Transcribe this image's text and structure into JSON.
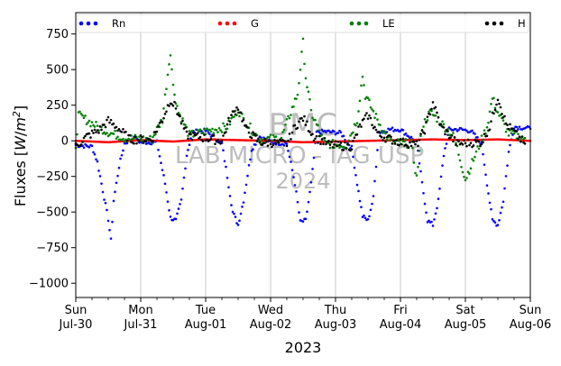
{
  "chart_data": {
    "type": "scatter",
    "xlabel": "2023",
    "ylabel": "Fluxes [W/m²]",
    "ylabel_parts": {
      "text": "Fluxes [",
      "unit_w": "W",
      "unit_slash": "/",
      "unit_m": "m",
      "unit_exp": "2",
      "close": "]"
    },
    "ylim": [
      -1100,
      900
    ],
    "yticks": [
      750,
      500,
      250,
      0,
      -250,
      -500,
      -750,
      -1000
    ],
    "ytick_labels": [
      "750",
      "500",
      "250",
      "0",
      "−250",
      "−500",
      "−750",
      "−1000"
    ],
    "xlim": [
      "2023-07-30",
      "2023-08-06"
    ],
    "xticks": [
      {
        "date": "2023-07-30",
        "day": "Sun",
        "date_label": "Jul-30"
      },
      {
        "date": "2023-07-31",
        "day": "Mon",
        "date_label": "Jul-31"
      },
      {
        "date": "2023-08-01",
        "day": "Tue",
        "date_label": "Aug-01"
      },
      {
        "date": "2023-08-02",
        "day": "Wed",
        "date_label": "Aug-02"
      },
      {
        "date": "2023-08-03",
        "day": "Thu",
        "date_label": "Aug-03"
      },
      {
        "date": "2023-08-04",
        "day": "Fri",
        "date_label": "Aug-04"
      },
      {
        "date": "2023-08-05",
        "day": "Sat",
        "date_label": "Aug-05"
      },
      {
        "date": "2023-08-06",
        "day": "Sun",
        "date_label": "Aug-06"
      }
    ],
    "grid": "vertical",
    "legend_position": "top",
    "series": [
      {
        "name": "Rn",
        "color": "#0000ff",
        "points": [
          [
            "2023-07-30 00:00",
            -30
          ],
          [
            "2023-07-30 03:00",
            -35
          ],
          [
            "2023-07-30 06:00",
            -40
          ],
          [
            "2023-07-30 08:00",
            -150
          ],
          [
            "2023-07-30 10:00",
            -350
          ],
          [
            "2023-07-30 12:00",
            -550
          ],
          [
            "2023-07-30 13:00",
            -700
          ],
          [
            "2023-07-30 14:00",
            -420
          ],
          [
            "2023-07-30 16:00",
            -180
          ],
          [
            "2023-07-30 18:00",
            -20
          ],
          [
            "2023-07-30 21:00",
            20
          ],
          [
            "2023-07-31 00:00",
            -10
          ],
          [
            "2023-07-31 06:00",
            -10
          ],
          [
            "2023-07-31 09:00",
            -300
          ],
          [
            "2023-07-31 11:00",
            -540
          ],
          [
            "2023-07-31 13:00",
            -560
          ],
          [
            "2023-07-31 15:00",
            -420
          ],
          [
            "2023-07-31 17:00",
            -100
          ],
          [
            "2023-07-31 19:00",
            60
          ],
          [
            "2023-07-31 22:00",
            70
          ],
          [
            "2023-08-01 00:00",
            70
          ],
          [
            "2023-08-01 06:00",
            -20
          ],
          [
            "2023-08-01 08:00",
            -250
          ],
          [
            "2023-08-01 10:00",
            -500
          ],
          [
            "2023-08-01 12:00",
            -590
          ],
          [
            "2023-08-01 14:00",
            -420
          ],
          [
            "2023-08-01 17:00",
            -60
          ],
          [
            "2023-08-01 20:00",
            30
          ],
          [
            "2023-08-02 00:00",
            -10
          ],
          [
            "2023-08-02 06:00",
            -20
          ],
          [
            "2023-08-02 09:00",
            -300
          ],
          [
            "2023-08-02 11:00",
            -570
          ],
          [
            "2023-08-02 13:00",
            -560
          ],
          [
            "2023-08-02 15:00",
            -300
          ],
          [
            "2023-08-02 17:00",
            60
          ],
          [
            "2023-08-02 20:00",
            65
          ],
          [
            "2023-08-02 23:00",
            60
          ],
          [
            "2023-08-03 02:00",
            55
          ],
          [
            "2023-08-03 06:00",
            -50
          ],
          [
            "2023-08-03 08:00",
            -300
          ],
          [
            "2023-08-03 10:00",
            -530
          ],
          [
            "2023-08-03 12:00",
            -560
          ],
          [
            "2023-08-03 14:00",
            -400
          ],
          [
            "2023-08-03 16:00",
            60
          ],
          [
            "2023-08-03 20:00",
            80
          ],
          [
            "2023-08-04 00:00",
            80
          ],
          [
            "2023-08-04 06:00",
            -10
          ],
          [
            "2023-08-04 08:00",
            -300
          ],
          [
            "2023-08-04 10:00",
            -560
          ],
          [
            "2023-08-04 12:00",
            -590
          ],
          [
            "2023-08-04 14:00",
            -420
          ],
          [
            "2023-08-04 16:00",
            -100
          ],
          [
            "2023-08-04 18:00",
            80
          ],
          [
            "2023-08-04 22:00",
            80
          ],
          [
            "2023-08-05 02:00",
            70
          ],
          [
            "2023-08-05 06:00",
            -20
          ],
          [
            "2023-08-05 08:00",
            -300
          ],
          [
            "2023-08-05 10:00",
            -560
          ],
          [
            "2023-08-05 12:00",
            -590
          ],
          [
            "2023-08-05 14:00",
            -420
          ],
          [
            "2023-08-05 16:00",
            -80
          ],
          [
            "2023-08-05 18:00",
            100
          ],
          [
            "2023-08-05 22:00",
            90
          ],
          [
            "2023-08-06 00:00",
            85
          ]
        ]
      },
      {
        "name": "G",
        "color": "#ff0000",
        "points": [
          [
            "2023-07-30 00:00",
            0
          ],
          [
            "2023-07-30 12:00",
            -10
          ],
          [
            "2023-07-31 00:00",
            5
          ],
          [
            "2023-07-31 12:00",
            -5
          ],
          [
            "2023-08-01 00:00",
            10
          ],
          [
            "2023-08-01 12:00",
            5
          ],
          [
            "2023-08-02 00:00",
            0
          ],
          [
            "2023-08-02 12:00",
            -10
          ],
          [
            "2023-08-03 00:00",
            -5
          ],
          [
            "2023-08-03 12:00",
            0
          ],
          [
            "2023-08-04 00:00",
            5
          ],
          [
            "2023-08-04 12:00",
            10
          ],
          [
            "2023-08-05 00:00",
            5
          ],
          [
            "2023-08-05 12:00",
            10
          ],
          [
            "2023-08-06 00:00",
            0
          ]
        ]
      },
      {
        "name": "LE",
        "color": "#008000",
        "points": [
          [
            "2023-07-30 00:00",
            -30
          ],
          [
            "2023-07-30 01:00",
            180
          ],
          [
            "2023-07-30 08:00",
            100
          ],
          [
            "2023-07-30 12:00",
            60
          ],
          [
            "2023-07-30 18:00",
            20
          ],
          [
            "2023-07-31 04:00",
            10
          ],
          [
            "2023-07-31 08:00",
            150
          ],
          [
            "2023-07-31 11:00",
            630
          ],
          [
            "2023-07-31 12:00",
            380
          ],
          [
            "2023-07-31 14:00",
            200
          ],
          [
            "2023-07-31 18:00",
            40
          ],
          [
            "2023-08-01 08:00",
            100
          ],
          [
            "2023-08-01 12:00",
            220
          ],
          [
            "2023-08-01 14:00",
            150
          ],
          [
            "2023-08-01 20:00",
            10
          ],
          [
            "2023-08-02 04:00",
            20
          ],
          [
            "2023-08-02 10:00",
            330
          ],
          [
            "2023-08-02 12:00",
            690
          ],
          [
            "2023-08-02 13:00",
            450
          ],
          [
            "2023-08-02 15:00",
            200
          ],
          [
            "2023-08-02 20:00",
            -20
          ],
          [
            "2023-08-03 04:00",
            -30
          ],
          [
            "2023-08-03 08:00",
            150
          ],
          [
            "2023-08-03 10:00",
            460
          ],
          [
            "2023-08-03 11:00",
            320
          ],
          [
            "2023-08-03 14:00",
            200
          ],
          [
            "2023-08-03 20:00",
            -10
          ],
          [
            "2023-08-04 04:00",
            -20
          ],
          [
            "2023-08-04 06:00",
            -260
          ],
          [
            "2023-08-04 08:00",
            100
          ],
          [
            "2023-08-04 11:00",
            200
          ],
          [
            "2023-08-04 14:00",
            150
          ],
          [
            "2023-08-04 20:00",
            20
          ],
          [
            "2023-08-05 00:00",
            -270
          ],
          [
            "2023-08-05 08:00",
            100
          ],
          [
            "2023-08-05 10:00",
            300
          ],
          [
            "2023-08-05 12:00",
            200
          ],
          [
            "2023-08-05 16:00",
            50
          ],
          [
            "2023-08-05 22:00",
            20
          ]
        ]
      },
      {
        "name": "H",
        "color": "#000000",
        "points": [
          [
            "2023-07-30 00:00",
            -40
          ],
          [
            "2023-07-30 04:00",
            30
          ],
          [
            "2023-07-30 09:00",
            80
          ],
          [
            "2023-07-30 12:00",
            140
          ],
          [
            "2023-07-30 15:00",
            100
          ],
          [
            "2023-07-30 20:00",
            10
          ],
          [
            "2023-07-31 04:00",
            10
          ],
          [
            "2023-07-31 08:00",
            150
          ],
          [
            "2023-07-31 11:00",
            290
          ],
          [
            "2023-07-31 13:00",
            230
          ],
          [
            "2023-07-31 17:00",
            40
          ],
          [
            "2023-08-01 06:00",
            0
          ],
          [
            "2023-08-01 09:00",
            160
          ],
          [
            "2023-08-01 12:00",
            240
          ],
          [
            "2023-08-01 15:00",
            80
          ],
          [
            "2023-08-01 20:00",
            -10
          ],
          [
            "2023-08-02 06:00",
            -20
          ],
          [
            "2023-08-02 09:00",
            100
          ],
          [
            "2023-08-02 12:00",
            160
          ],
          [
            "2023-08-02 16:00",
            30
          ],
          [
            "2023-08-02 22:00",
            -30
          ],
          [
            "2023-08-03 06:00",
            -40
          ],
          [
            "2023-08-03 09:00",
            100
          ],
          [
            "2023-08-03 12:00",
            180
          ],
          [
            "2023-08-03 16:00",
            40
          ],
          [
            "2023-08-03 22:00",
            0
          ],
          [
            "2023-08-04 06:00",
            -30
          ],
          [
            "2023-08-04 09:00",
            80
          ],
          [
            "2023-08-04 12:00",
            270
          ],
          [
            "2023-08-04 15:00",
            100
          ],
          [
            "2023-08-04 21:00",
            -20
          ],
          [
            "2023-08-05 06:00",
            -10
          ],
          [
            "2023-08-05 09:00",
            100
          ],
          [
            "2023-08-05 12:00",
            310
          ],
          [
            "2023-08-05 15:00",
            120
          ],
          [
            "2023-08-05 22:00",
            -20
          ]
        ]
      }
    ],
    "watermark": [
      "BMC",
      "LAB MICRO - IAG USP",
      "2024"
    ]
  }
}
